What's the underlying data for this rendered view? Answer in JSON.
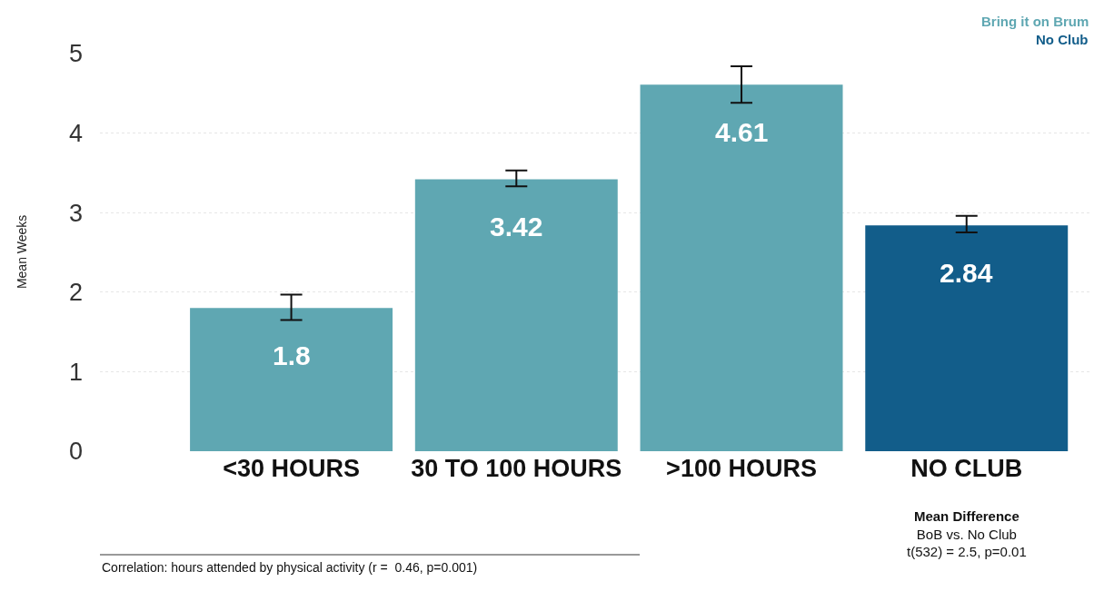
{
  "chart_data": {
    "type": "bar",
    "categories": [
      "<30 HOURS",
      "30 TO 100 HOURS",
      ">100 HOURS",
      "NO CLUB"
    ],
    "series": [
      {
        "name": "Bring it on Brum",
        "color": "#5fa7b2",
        "values": [
          1.8,
          3.42,
          4.61,
          null
        ],
        "errors": [
          [
            1.65,
            1.97
          ],
          [
            3.33,
            3.53
          ],
          [
            4.38,
            4.84
          ],
          null
        ]
      },
      {
        "name": "No Club",
        "color": "#125d8a",
        "values": [
          null,
          null,
          null,
          2.84
        ],
        "errors": [
          null,
          null,
          null,
          [
            2.75,
            2.96
          ]
        ]
      }
    ],
    "ylabel": "Mean Weeks",
    "ylim": [
      0,
      5
    ],
    "yticks": [
      0,
      1,
      2,
      3,
      4,
      5
    ],
    "grid": "y",
    "legend": "top right",
    "data_labels": true,
    "annotations": [
      "Mean Difference",
      "BoB vs. No Club",
      "t(532) = 2.5, p=0.01",
      "Correlation: hours attended by physical activity (r =  0.46, p=0.001)"
    ]
  }
}
